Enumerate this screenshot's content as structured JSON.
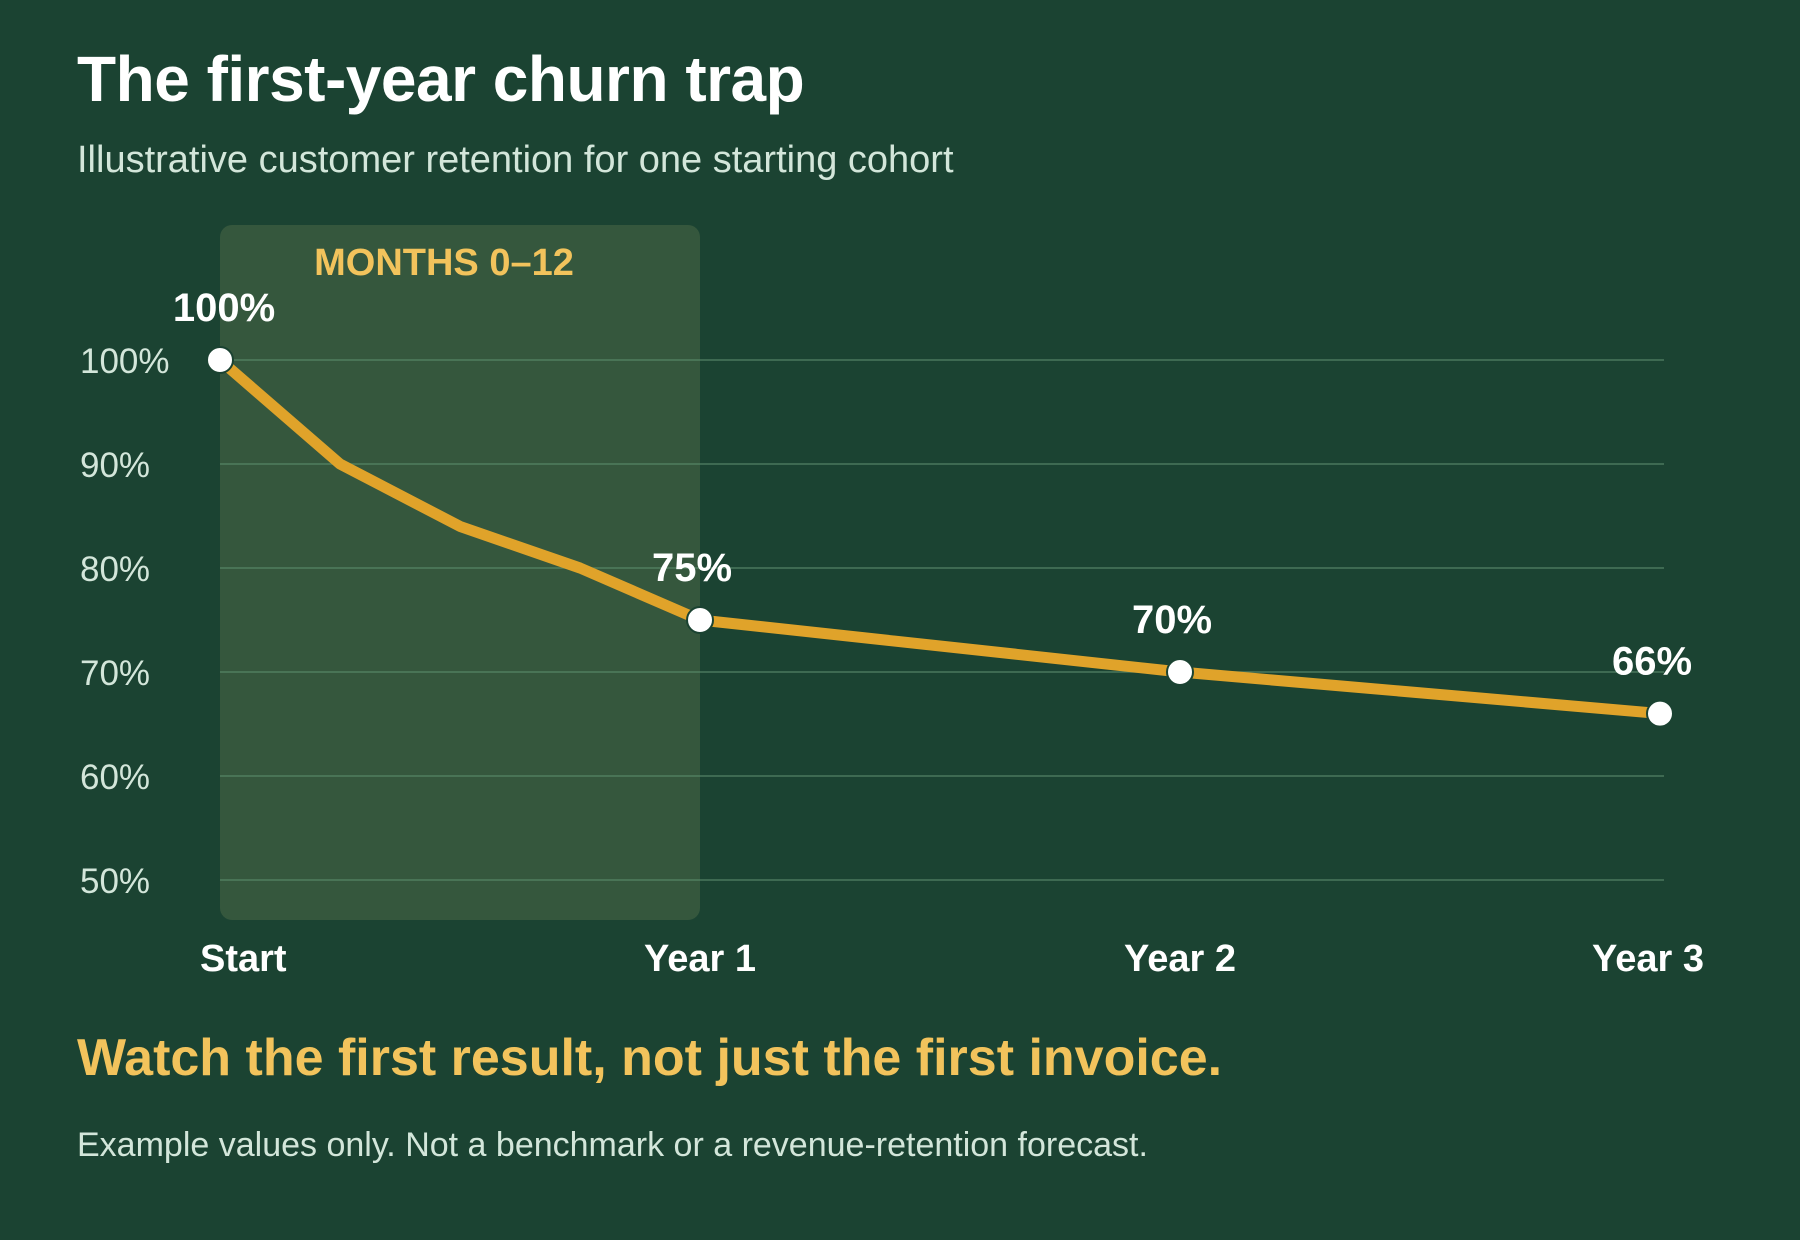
{
  "title": "The first-year churn trap",
  "subtitle": "Illustrative customer retention for one starting cohort",
  "takeaway": "Watch the first result, not just the first invoice.",
  "footnote": "Example values only. Not a benchmark or a revenue-retention forecast.",
  "colors": {
    "background": "#1b4332",
    "line": "#e0a32a",
    "highlight_band": "#3a5a40",
    "highlight_label": "#f2c35c",
    "gridline": "#5a8a6a",
    "text": "#ffffff",
    "muted_text": "#d3e6da"
  },
  "chart_data": {
    "type": "line",
    "title": "The first-year churn trap",
    "subtitle": "Illustrative customer retention for one starting cohort",
    "x_unit": "months",
    "x_ticks": [
      {
        "x": 0,
        "label": "Start"
      },
      {
        "x": 12,
        "label": "Year 1"
      },
      {
        "x": 24,
        "label": "Year 2"
      },
      {
        "x": 36,
        "label": "Year 3"
      }
    ],
    "y_ticks": [
      {
        "y": 100,
        "label": "100%"
      },
      {
        "y": 90,
        "label": "90%"
      },
      {
        "y": 80,
        "label": "80%"
      },
      {
        "y": 70,
        "label": "70%"
      },
      {
        "y": 60,
        "label": "60%"
      },
      {
        "y": 50,
        "label": "50%"
      }
    ],
    "ylim": [
      50,
      100
    ],
    "xlim": [
      0,
      36
    ],
    "grid": true,
    "series": [
      {
        "points": [
          {
            "x": 0,
            "y": 100
          },
          {
            "x": 3,
            "y": 90
          },
          {
            "x": 6,
            "y": 84
          },
          {
            "x": 9,
            "y": 80
          },
          {
            "x": 12,
            "y": 75
          },
          {
            "x": 24,
            "y": 70
          },
          {
            "x": 36,
            "y": 66
          }
        ]
      }
    ],
    "markers": [
      {
        "x": 0,
        "y": 100,
        "label": "100%"
      },
      {
        "x": 12,
        "y": 75,
        "label": "75%"
      },
      {
        "x": 24,
        "y": 70,
        "label": "70%"
      },
      {
        "x": 36,
        "y": 66,
        "label": "66%"
      }
    ],
    "highlight": {
      "x_from": 0,
      "x_to": 12,
      "label": "MONTHS 0–12"
    }
  }
}
